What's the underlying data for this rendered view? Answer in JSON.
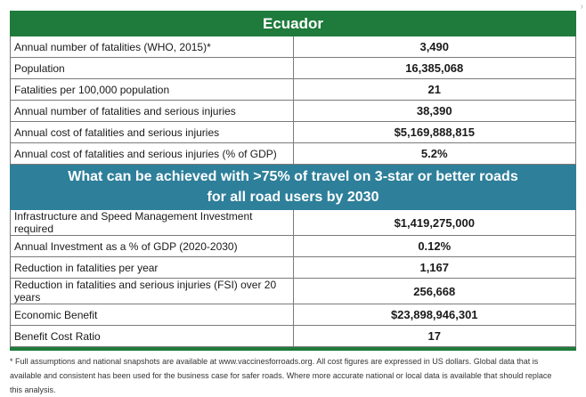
{
  "title": "Ecuador",
  "metrics": [
    {
      "label": "Annual number of fatalities (WHO, 2015)*",
      "value": "3,490"
    },
    {
      "label": "Population",
      "value": "16,385,068"
    },
    {
      "label": "Fatalities per 100,000 population",
      "value": "21"
    },
    {
      "label": "Annual number of fatalities and serious injuries",
      "value": "38,390"
    },
    {
      "label": "Annual cost of fatalities and serious injuries",
      "value": "$5,169,888,815"
    },
    {
      "label": "Annual cost of fatalities and serious injuries (% of GDP)",
      "value": "5.2%"
    }
  ],
  "scenario": {
    "line1": "What can be achieved with >75% of travel on 3-star or better roads",
    "line2": "for all road users by 2030"
  },
  "outcomes": [
    {
      "label": "Infrastructure and Speed Management Investment required",
      "value": "$1,419,275,000"
    },
    {
      "label": "Annual Investment as a % of GDP (2020-2030)",
      "value": "0.12%"
    },
    {
      "label": "Reduction in fatalities per year",
      "value": "1,167"
    },
    {
      "label": "Reduction in fatalities and serious injuries (FSI) over 20 years",
      "value": "256,668"
    },
    {
      "label": "Economic Benefit",
      "value": "$23,898,946,301"
    },
    {
      "label": "Benefit Cost Ratio",
      "value": "17"
    }
  ],
  "footnote": "* Full assumptions and national snapshots are available at www.vaccinesforroads.org. All cost figures are expressed in US dollars. Global data that is available and consistent has been used for the business case for safer roads. Where more accurate national or local data is available that should replace this analysis.",
  "icons": {
    "corner": "chevron-right-icon"
  },
  "colors": {
    "title_bg": "#1e7b3c",
    "scenario_bg": "#2e7f9a"
  }
}
